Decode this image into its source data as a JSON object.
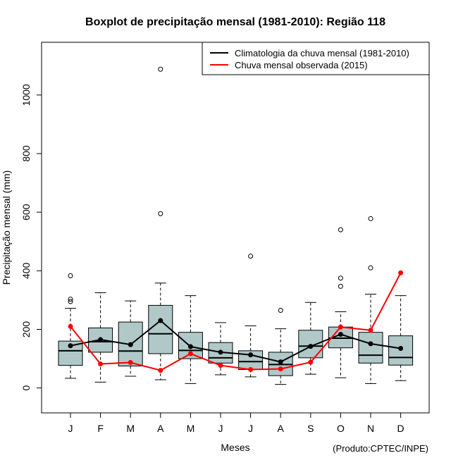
{
  "chart_data": {
    "type": "boxplot",
    "title": "Boxplot de precipitação mensal (1981-2010): Região 118",
    "xlabel": "Meses",
    "ylabel": "Precipitação mensal (mm)",
    "credit": "(Produto:CPTEC/INPE)",
    "ylim": [
      -85,
      1180
    ],
    "yticks": [
      0,
      200,
      400,
      600,
      800,
      1000
    ],
    "categories": [
      "J",
      "F",
      "M",
      "A",
      "M",
      "J",
      "J",
      "A",
      "S",
      "O",
      "N",
      "D"
    ],
    "boxes": [
      {
        "whisker_low": 33,
        "q1": 77,
        "median": 127,
        "q3": 160,
        "whisker_high": 272,
        "outliers": [
          295,
          303,
          383
        ]
      },
      {
        "whisker_low": 20,
        "q1": 122,
        "median": 158,
        "q3": 205,
        "whisker_high": 325,
        "outliers": []
      },
      {
        "whisker_low": 40,
        "q1": 75,
        "median": 126,
        "q3": 225,
        "whisker_high": 297,
        "outliers": []
      },
      {
        "whisker_low": 28,
        "q1": 117,
        "median": 185,
        "q3": 282,
        "whisker_high": 358,
        "outliers": [
          595,
          1088
        ]
      },
      {
        "whisker_low": 15,
        "q1": 100,
        "median": 128,
        "q3": 190,
        "whisker_high": 315,
        "outliers": []
      },
      {
        "whisker_low": 45,
        "q1": 85,
        "median": 103,
        "q3": 155,
        "whisker_high": 223,
        "outliers": []
      },
      {
        "whisker_low": 38,
        "q1": 63,
        "median": 90,
        "q3": 127,
        "whisker_high": 212,
        "outliers": [
          450
        ]
      },
      {
        "whisker_low": 12,
        "q1": 42,
        "median": 80,
        "q3": 122,
        "whisker_high": 202,
        "outliers": [
          265
        ]
      },
      {
        "whisker_low": 47,
        "q1": 103,
        "median": 143,
        "q3": 197,
        "whisker_high": 292,
        "outliers": []
      },
      {
        "whisker_low": 35,
        "q1": 137,
        "median": 170,
        "q3": 208,
        "whisker_high": 260,
        "outliers": [
          347,
          375,
          540
        ]
      },
      {
        "whisker_low": 15,
        "q1": 85,
        "median": 112,
        "q3": 190,
        "whisker_high": 320,
        "outliers": [
          410,
          578
        ]
      },
      {
        "whisker_low": 25,
        "q1": 78,
        "median": 104,
        "q3": 178,
        "whisker_high": 315,
        "outliers": []
      }
    ],
    "series": [
      {
        "name": "Climatologia da chuva mensal (1981-2010)",
        "color": "#000000",
        "values": [
          144,
          165,
          148,
          230,
          141,
          122,
          113,
          89,
          142,
          183,
          151,
          135
        ]
      },
      {
        "name": "Chuva mensal observada (2015)",
        "color": "#ff0000",
        "values": [
          210,
          82,
          87,
          60,
          117,
          77,
          63,
          65,
          88,
          208,
          197,
          393
        ]
      }
    ],
    "legend_position": "top-right",
    "box_fill": "#b0c8c8"
  }
}
